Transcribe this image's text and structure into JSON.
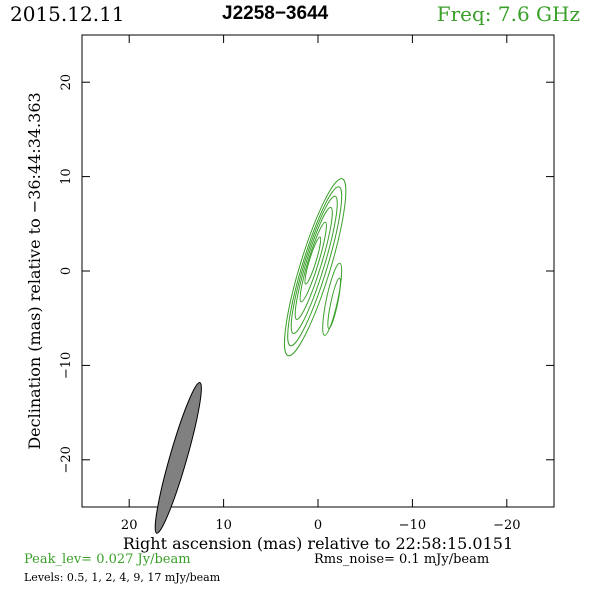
{
  "header": {
    "date": "2015.12.11",
    "source": "J2258−3644",
    "frequency": "Freq: 7.6 GHz"
  },
  "colors": {
    "contour": "#3aa02a",
    "beam_fill": "#808080",
    "frequency_text": "#3aa02a",
    "peak_text": "#3aa02a"
  },
  "footer": {
    "peak": "Peak_lev=  0.027 Jy/beam",
    "rms": "Rms_noise=   0.1 mJy/beam",
    "levels": "Levels: 0.5,    1,    2,    4,    9,   17 mJy/beam"
  },
  "chart_data": {
    "type": "contour",
    "xlabel": "Right ascension (mas) relative to 22:58:15.0151",
    "ylabel": "Declination (mas) relative to −36:44:34.363",
    "xlim": [
      25,
      -25
    ],
    "ylim": [
      -25,
      25
    ],
    "x_ticks": [
      20,
      10,
      0,
      -10,
      -20
    ],
    "x_tick_labels": [
      "20",
      "10",
      "0",
      "−10",
      "−20"
    ],
    "y_ticks": [
      -20,
      -10,
      0,
      10,
      20
    ],
    "y_tick_labels": [
      "−20",
      "−10",
      "0",
      "10",
      "20"
    ],
    "grid": false,
    "contour_levels_mJy": [
      0.5,
      1,
      2,
      4,
      9,
      17
    ],
    "peak_Jy_per_beam": 0.027,
    "rms_noise_mJy_per_beam": 0.1,
    "beam": {
      "x": 14.8,
      "y": -19.8,
      "major": 8.3,
      "minor": 0.9,
      "angle_deg": 16
    },
    "component": {
      "x": 0.3,
      "y": 0.4,
      "angle_deg": 17
    },
    "contours": [
      {
        "level": 0.5,
        "major": 9.8,
        "minor": 1.6,
        "dx": 0.0,
        "dy": 0.0
      },
      {
        "level": 1,
        "major": 8.8,
        "minor": 1.3,
        "dx": 0.05,
        "dy": 0.1
      },
      {
        "level": 2,
        "major": 7.6,
        "minor": 1.05,
        "dx": 0.1,
        "dy": 0.25
      },
      {
        "level": 4,
        "major": 6.2,
        "minor": 0.8,
        "dx": 0.15,
        "dy": 0.4
      },
      {
        "level": 9,
        "major": 4.4,
        "minor": 0.55,
        "dx": 0.2,
        "dy": 0.55
      },
      {
        "level": 17,
        "major": 2.6,
        "minor": 0.35,
        "dx": 0.25,
        "dy": 0.7
      }
    ],
    "extension": {
      "x": -1.5,
      "y": -3.0,
      "major": 3.9,
      "minor": 0.6,
      "angle_deg": 12
    }
  }
}
